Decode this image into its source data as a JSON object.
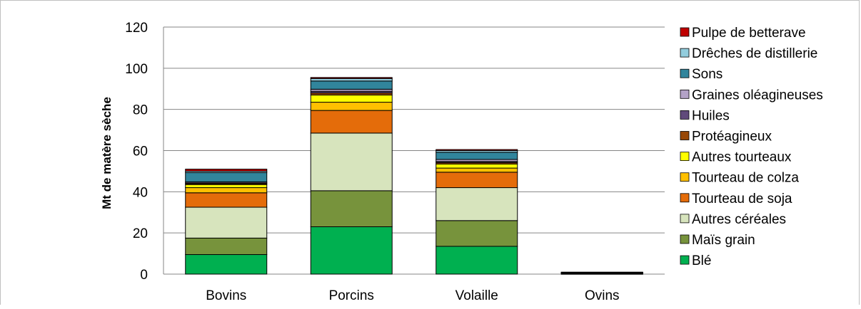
{
  "chart_data": {
    "type": "bar",
    "stacked": true,
    "title": "",
    "xlabel": "",
    "ylabel": "Mt de matère sèche",
    "ylim": [
      0,
      120
    ],
    "yticks": [
      0,
      20,
      40,
      60,
      80,
      100,
      120
    ],
    "grid": true,
    "legend_position": "right",
    "categories": [
      "Bovins",
      "Porcins",
      "Volaille",
      "Ovins"
    ],
    "series": [
      {
        "name": "Blé",
        "color": "#00b050",
        "values": [
          9.5,
          23.0,
          13.5,
          0.1
        ]
      },
      {
        "name": "Maïs grain",
        "color": "#77933c",
        "values": [
          8.0,
          17.5,
          12.5,
          0.1
        ]
      },
      {
        "name": "Autres céréales",
        "color": "#d7e4bd",
        "values": [
          15.0,
          28.0,
          16.0,
          0.1
        ]
      },
      {
        "name": "Tourteau de soja",
        "color": "#e46c0a",
        "values": [
          7.0,
          11.0,
          7.5,
          0.1
        ]
      },
      {
        "name": "Tourteau de colza",
        "color": "#ffc000",
        "values": [
          2.5,
          4.0,
          2.0,
          0.1
        ]
      },
      {
        "name": "Autres tourteaux",
        "color": "#ffff00",
        "values": [
          1.5,
          3.5,
          2.0,
          0.1
        ]
      },
      {
        "name": "Protéagineux",
        "color": "#984807",
        "values": [
          0.5,
          1.0,
          0.7,
          0.05
        ]
      },
      {
        "name": "Huiles",
        "color": "#604a7b",
        "values": [
          0.3,
          0.8,
          0.5,
          0.05
        ]
      },
      {
        "name": "Graines oléagineuses",
        "color": "#b3a2c7",
        "values": [
          0.5,
          1.0,
          1.0,
          0.05
        ]
      },
      {
        "name": "Sons",
        "color": "#31859c",
        "values": [
          4.5,
          4.0,
          3.5,
          0.1
        ]
      },
      {
        "name": "Drêches de distillerie",
        "color": "#93cddd",
        "values": [
          0.7,
          1.2,
          0.8,
          0.05
        ]
      },
      {
        "name": "Pulpe de betterave",
        "color": "#c00000",
        "values": [
          1.0,
          0.5,
          0.5,
          0.05
        ]
      }
    ]
  }
}
